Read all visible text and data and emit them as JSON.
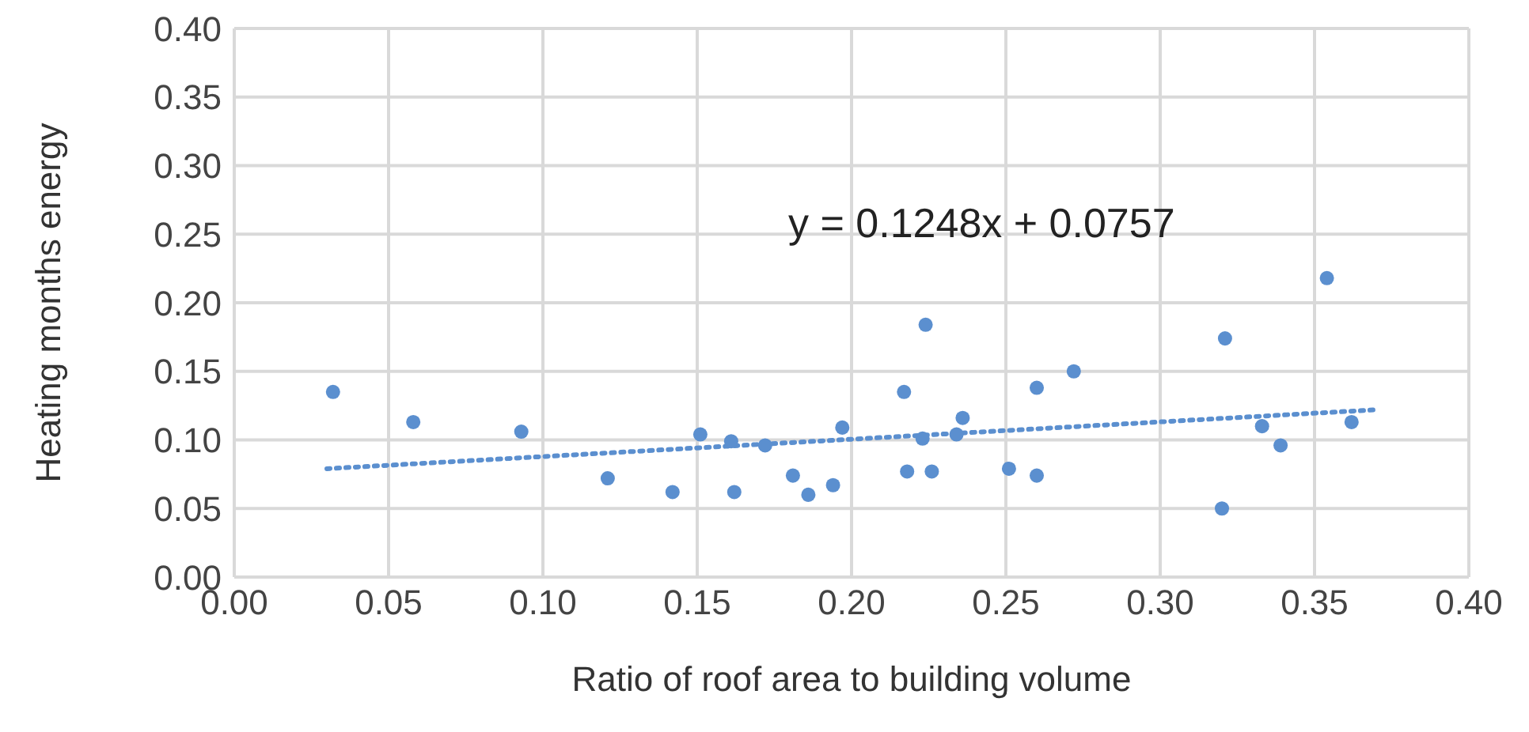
{
  "chart_data": {
    "type": "scatter",
    "xlabel": "Ratio of roof area to building volume",
    "ylabel": "Heating months energy",
    "annotations": [
      "y = 0.1248x + 0.0757"
    ],
    "xlim": [
      0,
      0.4
    ],
    "xticks": [
      {
        "value": 0,
        "label": "0.00"
      },
      {
        "value": 0.05,
        "label": "0.05"
      },
      {
        "value": 0.1,
        "label": "0.10"
      },
      {
        "value": 0.15,
        "label": "0.15"
      },
      {
        "value": 0.2,
        "label": "0.20"
      },
      {
        "value": 0.25,
        "label": "0.25"
      },
      {
        "value": 0.3,
        "label": "0.30"
      },
      {
        "value": 0.35,
        "label": "0.35"
      },
      {
        "value": 0.4,
        "label": "0.40"
      }
    ],
    "ylim": [
      0,
      0.4
    ],
    "yticks": [
      {
        "value": 0,
        "label": "0.00"
      },
      {
        "value": 0.05,
        "label": "0.05"
      },
      {
        "value": 0.1,
        "label": "0.10"
      },
      {
        "value": 0.15,
        "label": "0.15"
      },
      {
        "value": 0.2,
        "label": "0.20"
      },
      {
        "value": 0.25,
        "label": "0.25"
      },
      {
        "value": 0.3,
        "label": "0.30"
      },
      {
        "value": 0.35,
        "label": "0.35"
      },
      {
        "value": 0.4,
        "label": "0.40"
      }
    ],
    "grid": true,
    "marker": "circle",
    "series": [
      {
        "color": "#5b8fcf",
        "x": [
          0.032,
          0.058,
          0.093,
          0.121,
          0.142,
          0.151,
          0.161,
          0.162,
          0.172,
          0.181,
          0.186,
          0.194,
          0.197,
          0.217,
          0.218,
          0.223,
          0.224,
          0.226,
          0.234,
          0.236,
          0.251,
          0.26,
          0.26,
          0.272,
          0.32,
          0.321,
          0.333,
          0.339,
          0.354,
          0.362
        ],
        "values": [
          0.135,
          0.113,
          0.106,
          0.072,
          0.062,
          0.104,
          0.099,
          0.062,
          0.096,
          0.074,
          0.06,
          0.067,
          0.109,
          0.135,
          0.077,
          0.101,
          0.184,
          0.077,
          0.104,
          0.116,
          0.079,
          0.074,
          0.138,
          0.15,
          0.05,
          0.174,
          0.11,
          0.096,
          0.218,
          0.113
        ]
      },
      {
        "type": "line",
        "color": "#5b8fcf",
        "line_style": "dotted",
        "marker": "none",
        "x": [
          0.03,
          0.37
        ],
        "values": [
          0.079,
          0.122
        ]
      }
    ]
  }
}
